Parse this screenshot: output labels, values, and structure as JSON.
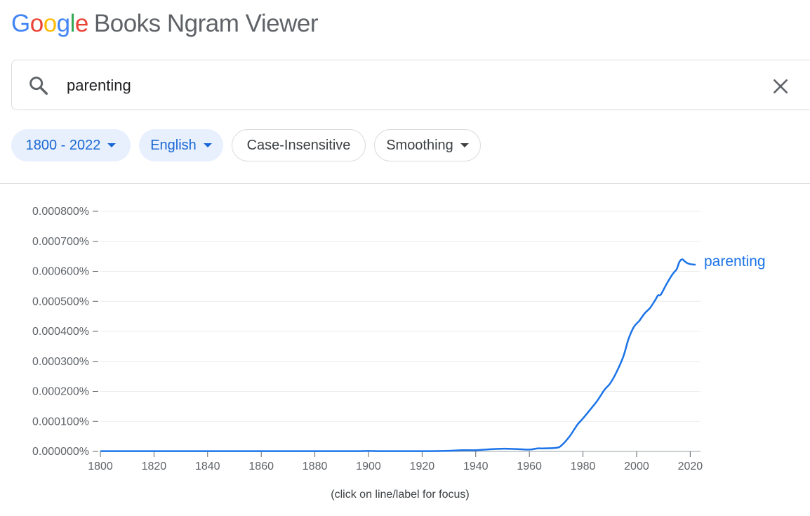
{
  "logo": {
    "letters": [
      "G",
      "o",
      "o",
      "g",
      "l",
      "e"
    ],
    "product": "Books Ngram Viewer"
  },
  "search": {
    "value": "parenting",
    "icon": "search-icon",
    "clear_icon": "close-icon"
  },
  "chips": {
    "years": "1800 - 2022",
    "language": "English",
    "case": "Case-Insensitive",
    "smoothing": "Smoothing"
  },
  "colors": {
    "accent": "#1a73e8",
    "chip_bg": "#e8f0fe",
    "line": "#1a73e8"
  },
  "footnote": "(click on line/label for focus)",
  "chart_data": {
    "type": "line",
    "title": "",
    "xlabel": "",
    "ylabel": "",
    "xlim": [
      1800,
      2022
    ],
    "ylim": [
      0,
      0.0008
    ],
    "x_ticks": [
      1800,
      1820,
      1840,
      1860,
      1880,
      1900,
      1920,
      1940,
      1960,
      1980,
      2000,
      2020
    ],
    "y_ticks": [
      0,
      0.0001,
      0.0002,
      0.0003,
      0.0004,
      0.0005,
      0.0006,
      0.0007,
      0.0008
    ],
    "y_tick_labels": [
      "0.000000%",
      "0.000100%",
      "0.000200%",
      "0.000300%",
      "0.000400%",
      "0.000500%",
      "0.000600%",
      "0.000700%",
      "0.000800%"
    ],
    "grid": true,
    "series": [
      {
        "name": "parenting",
        "color": "#1a73e8",
        "x": [
          1800,
          1820,
          1840,
          1860,
          1880,
          1895,
          1900,
          1905,
          1920,
          1930,
          1935,
          1940,
          1945,
          1950,
          1955,
          1960,
          1963,
          1965,
          1970,
          1972,
          1975,
          1978,
          1980,
          1985,
          1988,
          1990,
          1992,
          1995,
          1997,
          1999,
          2001,
          2003,
          2005,
          2007,
          2008,
          2009,
          2011,
          2013,
          2014,
          2015,
          2016,
          2017,
          2018,
          2019,
          2020,
          2022
        ],
        "y": [
          1e-06,
          1e-06,
          1e-06,
          1e-06,
          1e-06,
          1e-06,
          1.5e-06,
          1e-06,
          1e-06,
          2e-06,
          4e-06,
          4e-06,
          7e-06,
          9e-06,
          8e-06,
          6e-06,
          1e-05,
          1e-05,
          1.2e-05,
          2e-05,
          5e-05,
          9e-05,
          0.00011,
          0.000165,
          0.000205,
          0.000225,
          0.000255,
          0.000315,
          0.000375,
          0.000415,
          0.000435,
          0.00046,
          0.000478,
          0.000505,
          0.00052,
          0.000522,
          0.000555,
          0.000585,
          0.000597,
          0.000608,
          0.000632,
          0.00064,
          0.000633,
          0.000627,
          0.000624,
          0.000622
        ]
      }
    ]
  }
}
